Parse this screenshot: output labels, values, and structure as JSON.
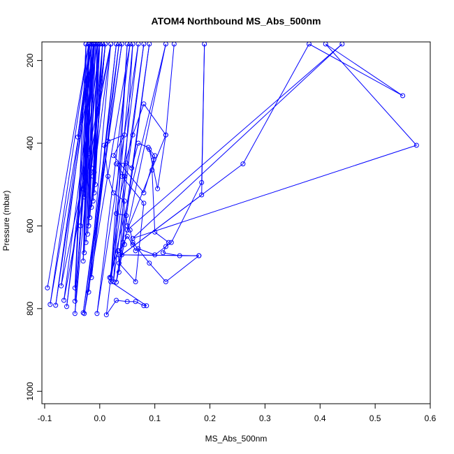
{
  "chart_data": {
    "type": "scatter",
    "title": "ATOM4 Northbound MS_Abs_500nm",
    "xlabel": "MS_Abs_500nm",
    "ylabel": "Pressure (mbar)",
    "xlim": [
      -0.105,
      0.6
    ],
    "ylim": [
      1030,
      155
    ],
    "y_reversed": true,
    "xticks": [
      -0.1,
      0.0,
      0.1,
      0.2,
      0.3,
      0.4,
      0.5,
      0.6
    ],
    "xtick_labels": [
      "-0.1",
      "0.0",
      "0.1",
      "0.2",
      "0.3",
      "0.4",
      "0.5",
      "0.6"
    ],
    "yticks": [
      200,
      400,
      600,
      800,
      1000
    ],
    "ytick_labels": [
      "200",
      "400",
      "600",
      "800",
      "1000"
    ],
    "grid": false,
    "legend": "none",
    "series_color": "#0000ff",
    "point_style": "open-circle-connected",
    "series": [
      {
        "points": [
          [
            -0.095,
            750
          ],
          [
            -0.02,
            160
          ],
          [
            -0.09,
            790
          ],
          [
            -0.01,
            160
          ],
          [
            -0.08,
            792
          ],
          [
            -0.015,
            160
          ],
          [
            -0.07,
            745
          ],
          [
            0.02,
            160
          ],
          [
            -0.065,
            780
          ],
          [
            -0.005,
            160
          ],
          [
            -0.06,
            795
          ],
          [
            0.0,
            160
          ],
          [
            -0.045,
            812
          ],
          [
            -0.01,
            160
          ],
          [
            -0.045,
            782
          ],
          [
            -0.025,
            160
          ],
          [
            -0.045,
            750
          ],
          [
            -0.02,
            160
          ],
          [
            -0.035,
            600
          ],
          [
            -0.018,
            160
          ],
          [
            -0.04,
            385
          ],
          [
            -0.015,
            160
          ],
          [
            -0.03,
            510
          ],
          [
            -0.012,
            160
          ],
          [
            -0.028,
            530
          ],
          [
            -0.025,
            160
          ],
          [
            -0.025,
            470
          ],
          [
            -0.02,
            160
          ],
          [
            -0.02,
            425
          ],
          [
            -0.015,
            160
          ],
          [
            -0.03,
            685
          ],
          [
            -0.02,
            160
          ],
          [
            -0.028,
            665
          ],
          [
            -0.015,
            160
          ],
          [
            -0.025,
            640
          ],
          [
            -0.01,
            160
          ],
          [
            -0.022,
            620
          ],
          [
            -0.012,
            160
          ],
          [
            -0.02,
            600
          ],
          [
            -0.008,
            160
          ],
          [
            -0.018,
            580
          ],
          [
            0.01,
            160
          ],
          [
            -0.015,
            555
          ],
          [
            0.0,
            160
          ],
          [
            -0.012,
            540
          ],
          [
            -0.005,
            160
          ],
          [
            -0.01,
            520
          ],
          [
            0.005,
            160
          ],
          [
            -0.008,
            500
          ],
          [
            -0.003,
            160
          ],
          [
            -0.012,
            480
          ],
          [
            0.005,
            160
          ],
          [
            -0.015,
            460
          ],
          [
            0.01,
            160
          ],
          [
            -0.01,
            470
          ],
          [
            0.02,
            160
          ],
          [
            -0.02,
            760
          ],
          [
            0.03,
            160
          ],
          [
            -0.015,
            725
          ],
          [
            0.035,
            160
          ],
          [
            -0.03,
            810
          ],
          [
            0.04,
            160
          ],
          [
            -0.028,
            812
          ],
          [
            0.055,
            160
          ],
          [
            -0.005,
            812
          ],
          [
            0.07,
            160
          ],
          [
            0.012,
            815
          ],
          [
            0.03,
            780
          ],
          [
            0.05,
            783
          ],
          [
            0.065,
            783
          ],
          [
            0.08,
            793
          ],
          [
            0.085,
            793
          ],
          [
            0.02,
            735
          ],
          [
            0.08,
            160
          ],
          [
            0.025,
            735
          ],
          [
            0.05,
            160
          ],
          [
            0.02,
            725
          ],
          [
            0.06,
            160
          ],
          [
            0.035,
            712
          ],
          [
            0.09,
            160
          ],
          [
            0.03,
            736
          ],
          [
            0.12,
            160
          ],
          [
            0.018,
            725
          ],
          [
            0.033,
            660
          ],
          [
            0.035,
            690
          ],
          [
            0.065,
            735
          ],
          [
            0.08,
            545
          ],
          [
            0.04,
            480
          ],
          [
            0.06,
            380
          ],
          [
            0.08,
            305
          ],
          [
            0.12,
            380
          ],
          [
            0.105,
            510
          ],
          [
            0.09,
            415
          ],
          [
            0.1,
            430
          ],
          [
            0.095,
            465
          ],
          [
            0.1,
            615
          ],
          [
            0.125,
            640
          ],
          [
            0.12,
            650
          ],
          [
            0.115,
            665
          ],
          [
            0.145,
            672
          ],
          [
            0.18,
            672
          ],
          [
            0.035,
            670
          ],
          [
            0.18,
            672
          ],
          [
            0.12,
            735
          ],
          [
            0.09,
            690
          ],
          [
            0.06,
            640
          ],
          [
            0.055,
            610
          ],
          [
            0.05,
            600
          ],
          [
            0.048,
            575
          ],
          [
            0.03,
            570
          ],
          [
            0.045,
            480
          ],
          [
            0.03,
            450
          ],
          [
            0.048,
            448
          ],
          [
            0.058,
            460
          ],
          [
            0.07,
            400
          ],
          [
            0.088,
            410
          ],
          [
            0.098,
            440
          ],
          [
            0.08,
            520
          ],
          [
            0.025,
            430
          ],
          [
            0.045,
            380
          ],
          [
            0.015,
            395
          ],
          [
            0.008,
            405
          ],
          [
            0.015,
            480
          ],
          [
            0.025,
            520
          ],
          [
            0.045,
            540
          ],
          [
            0.042,
            640
          ],
          [
            0.045,
            645
          ],
          [
            0.035,
            660
          ],
          [
            0.05,
            625
          ],
          [
            0.06,
            645
          ],
          [
            0.065,
            660
          ],
          [
            0.07,
            655
          ],
          [
            0.1,
            670
          ],
          [
            0.13,
            640
          ],
          [
            0.185,
            495
          ],
          [
            0.19,
            160
          ],
          [
            0.185,
            525
          ],
          [
            0.04,
            670
          ],
          [
            0.26,
            450
          ],
          [
            0.38,
            160
          ],
          [
            0.55,
            285
          ],
          [
            0.41,
            160
          ],
          [
            0.575,
            405
          ],
          [
            0.06,
            630
          ],
          [
            0.44,
            160
          ],
          [
            0.05,
            610
          ],
          [
            0.12,
            380
          ],
          [
            0.135,
            160
          ]
        ]
      }
    ]
  }
}
